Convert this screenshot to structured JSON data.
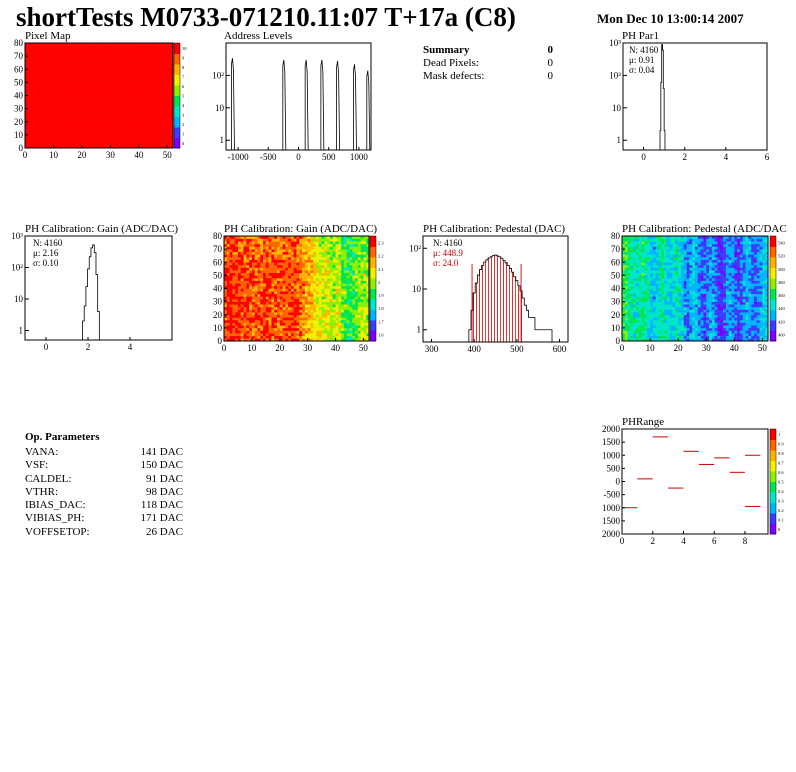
{
  "header": {
    "title": "shortTests M0733-071210.11:07 T+17a (C8)",
    "date": "Mon Dec 10 13:00:14 2007"
  },
  "summary": {
    "heading": "Summary",
    "heading_value": "0",
    "rows": [
      {
        "label": "Dead Pixels:",
        "value": "0"
      },
      {
        "label": "Mask defects:",
        "value": "0"
      }
    ]
  },
  "op_params": {
    "heading": "Op. Parameters",
    "rows": [
      {
        "name": "VANA:",
        "value": "141 DAC"
      },
      {
        "name": "VSF:",
        "value": "150 DAC"
      },
      {
        "name": "CALDEL:",
        "value": "91 DAC"
      },
      {
        "name": "VTHR:",
        "value": "98 DAC"
      },
      {
        "name": "IBIAS_DAC:",
        "value": "118 DAC"
      },
      {
        "name": "VIBIAS_PH:",
        "value": "171 DAC"
      },
      {
        "name": "VOFFSETOP:",
        "value": "26 DAC"
      }
    ]
  },
  "colors": {
    "frame": "#000000",
    "hist_line": "#000000",
    "fit_red": "#cc0000",
    "palette": [
      "#7b00ff",
      "#3c3cff",
      "#00b4ff",
      "#00e6c8",
      "#00e650",
      "#8cf000",
      "#f0f000",
      "#ffb400",
      "#ff6400",
      "#ff0000"
    ]
  },
  "chart_data": [
    {
      "id": "pixel_map",
      "type": "heatmap",
      "title": "Pixel Map",
      "x_ticks": [
        "0",
        "10",
        "20",
        "30",
        "40",
        "50"
      ],
      "y_ticks": [
        "0",
        "10",
        "20",
        "30",
        "40",
        "50",
        "60",
        "70",
        "80"
      ],
      "xlim": [
        0,
        52
      ],
      "ylim": [
        0,
        80
      ],
      "uniform_value": 10,
      "colorbar_labels": [
        "10",
        "9",
        "8",
        "7",
        "6",
        "5",
        "4",
        "3",
        "2",
        "1",
        "0"
      ]
    },
    {
      "id": "address_levels",
      "type": "bar",
      "title": "Address Levels",
      "x_ticks": [
        "-1000",
        "-500",
        "0",
        "500",
        "1000"
      ],
      "y_ticks": [
        "1",
        "10",
        "10²"
      ],
      "xlim": [
        -1200,
        1200
      ],
      "log_y": true,
      "ylim": [
        0.5,
        1000
      ],
      "peaks": [
        {
          "x": -1060,
          "y": 340
        },
        {
          "x": -210,
          "y": 300
        },
        {
          "x": 160,
          "y": 300
        },
        {
          "x": 420,
          "y": 300
        },
        {
          "x": 680,
          "y": 280
        },
        {
          "x": 960,
          "y": 220
        },
        {
          "x": 1180,
          "y": 140
        }
      ]
    },
    {
      "id": "ph_par1",
      "type": "bar",
      "title": "PH Par1",
      "x_ticks": [
        "0",
        "2",
        "4",
        "6"
      ],
      "y_ticks": [
        "1",
        "10",
        "10²",
        "10³"
      ],
      "xlim": [
        -1,
        6
      ],
      "log_y": true,
      "ylim": [
        0.5,
        1000
      ],
      "stats": [
        "N: 4160",
        "μ: 0.91",
        "σ: 0.04"
      ],
      "bins": [
        {
          "x": 0.82,
          "y": 2
        },
        {
          "x": 0.86,
          "y": 60
        },
        {
          "x": 0.9,
          "y": 900
        },
        {
          "x": 0.94,
          "y": 600
        },
        {
          "x": 0.98,
          "y": 40
        },
        {
          "x": 1.02,
          "y": 2
        }
      ]
    },
    {
      "id": "ph_gain",
      "type": "bar",
      "title": "PH Calibration: Gain (ADC/DAC)",
      "x_ticks": [
        "0",
        "2",
        "4"
      ],
      "y_ticks": [
        "1",
        "10",
        "10²",
        "10³"
      ],
      "xlim": [
        -1,
        6
      ],
      "log_y": true,
      "ylim": [
        0.5,
        1000
      ],
      "stats": [
        "N: 4160",
        "μ: 2.16",
        "σ: 0.10"
      ],
      "bins": [
        {
          "x": 1.78,
          "y": 2
        },
        {
          "x": 1.86,
          "y": 6
        },
        {
          "x": 1.94,
          "y": 25
        },
        {
          "x": 2.02,
          "y": 90
        },
        {
          "x": 2.1,
          "y": 220
        },
        {
          "x": 2.18,
          "y": 420
        },
        {
          "x": 2.26,
          "y": 520
        },
        {
          "x": 2.34,
          "y": 300
        },
        {
          "x": 2.42,
          "y": 60
        },
        {
          "x": 2.5,
          "y": 4
        }
      ]
    },
    {
      "id": "ph_gain_map",
      "type": "heatmap",
      "title": "PH Calibration: Gain (ADC/DAC)",
      "x_ticks": [
        "0",
        "10",
        "20",
        "30",
        "40",
        "50"
      ],
      "y_ticks": [
        "0",
        "10",
        "20",
        "30",
        "40",
        "50",
        "60",
        "70",
        "80"
      ],
      "xlim": [
        0,
        52
      ],
      "ylim": [
        0,
        80
      ],
      "zlim": [
        1.6,
        2.4
      ],
      "colorbar_labels": [
        "2.3",
        "2.2",
        "2.1",
        "2",
        "1.9",
        "1.8",
        "1.7",
        "1.6"
      ],
      "column_trend": [
        2.32,
        2.33,
        2.34,
        2.34,
        2.33,
        2.33,
        2.32,
        2.32,
        2.31,
        2.31,
        2.3,
        2.3,
        2.3,
        2.3,
        2.31,
        2.31,
        2.3,
        2.3,
        2.29,
        2.29,
        2.3,
        2.3,
        2.31,
        2.31,
        2.32,
        2.32,
        2.3,
        2.28,
        2.24,
        2.22,
        2.2,
        2.18,
        2.14,
        2.12,
        2.1,
        2.08,
        2.12,
        2.1,
        2.08,
        2.06,
        2.1,
        2.08,
        2.02,
        2.0,
        1.98,
        1.96,
        2.0,
        2.02,
        2.04,
        2.06,
        2.08,
        2.06
      ]
    },
    {
      "id": "ph_pedestal",
      "type": "bar",
      "title": "PH Calibration: Pedestal (DAC)",
      "x_ticks": [
        "300",
        "400",
        "500",
        "600"
      ],
      "y_ticks": [
        "1",
        "10",
        "10²"
      ],
      "xlim": [
        280,
        620
      ],
      "log_y": true,
      "ylim": [
        0.5,
        200
      ],
      "stats": [
        "N: 4160",
        "μ: 448.9",
        "σ: 24.0"
      ],
      "fit_range": [
        395,
        510
      ],
      "bins": [
        {
          "x": 390,
          "y": 1
        },
        {
          "x": 395,
          "y": 3
        },
        {
          "x": 400,
          "y": 8
        },
        {
          "x": 405,
          "y": 14
        },
        {
          "x": 410,
          "y": 22
        },
        {
          "x": 415,
          "y": 30
        },
        {
          "x": 420,
          "y": 38
        },
        {
          "x": 425,
          "y": 46
        },
        {
          "x": 430,
          "y": 52
        },
        {
          "x": 435,
          "y": 58
        },
        {
          "x": 440,
          "y": 62
        },
        {
          "x": 445,
          "y": 66
        },
        {
          "x": 450,
          "y": 68
        },
        {
          "x": 455,
          "y": 65
        },
        {
          "x": 460,
          "y": 62
        },
        {
          "x": 465,
          "y": 56
        },
        {
          "x": 470,
          "y": 50
        },
        {
          "x": 475,
          "y": 44
        },
        {
          "x": 480,
          "y": 38
        },
        {
          "x": 485,
          "y": 32
        },
        {
          "x": 490,
          "y": 26
        },
        {
          "x": 495,
          "y": 20
        },
        {
          "x": 500,
          "y": 16
        },
        {
          "x": 505,
          "y": 12
        },
        {
          "x": 510,
          "y": 9
        },
        {
          "x": 515,
          "y": 6
        },
        {
          "x": 520,
          "y": 4
        },
        {
          "x": 525,
          "y": 3
        },
        {
          "x": 530,
          "y": 2
        },
        {
          "x": 535,
          "y": 2
        },
        {
          "x": 540,
          "y": 2
        },
        {
          "x": 545,
          "y": 1
        },
        {
          "x": 550,
          "y": 1
        },
        {
          "x": 560,
          "y": 1
        },
        {
          "x": 570,
          "y": 1
        },
        {
          "x": 580,
          "y": 1
        }
      ]
    },
    {
      "id": "ph_pedestal_map",
      "type": "heatmap",
      "title": "PH Calibration: Pedestal (ADC/DAC",
      "x_ticks": [
        "0",
        "10",
        "20",
        "30",
        "40",
        "50"
      ],
      "y_ticks": [
        "0",
        "10",
        "20",
        "30",
        "40",
        "50",
        "60",
        "70",
        "80"
      ],
      "xlim": [
        0,
        52
      ],
      "ylim": [
        0,
        80
      ],
      "zlim": [
        390,
        560
      ],
      "colorbar_labels": [
        "540",
        "520",
        "500",
        "480",
        "460",
        "440",
        "420",
        "400"
      ],
      "column_trend": [
        470,
        468,
        460,
        455,
        450,
        452,
        458,
        462,
        455,
        448,
        440,
        438,
        445,
        452,
        456,
        450,
        444,
        440,
        446,
        452,
        448,
        440,
        430,
        425,
        432,
        440,
        436,
        428,
        420,
        415,
        424,
        432,
        430,
        422,
        414,
        410,
        418,
        428,
        432,
        426,
        418,
        412,
        420,
        430,
        436,
        430,
        424,
        420,
        426,
        434,
        438,
        440
      ]
    },
    {
      "id": "ph_range",
      "type": "scatter",
      "title": "PHRange",
      "x_ticks": [
        "0",
        "2",
        "4",
        "6",
        "8"
      ],
      "y_ticks": [
        "2000",
        "1500",
        "1000",
        "500",
        "0",
        "-500",
        "1000",
        "1500",
        "2000"
      ],
      "xlim": [
        0,
        9.5
      ],
      "ylim": [
        -2000,
        2000
      ],
      "colorbar_labels": [
        "1",
        "0.9",
        "0.8",
        "0.7",
        "0.6",
        "0.5",
        "0.4",
        "0.3",
        "0.2",
        "0.1",
        "0"
      ],
      "segments": [
        {
          "x": 0.5,
          "y": -1000
        },
        {
          "x": 1.5,
          "y": 100
        },
        {
          "x": 2.5,
          "y": 1700
        },
        {
          "x": 3.5,
          "y": -250
        },
        {
          "x": 4.5,
          "y": 1150
        },
        {
          "x": 5.5,
          "y": 650
        },
        {
          "x": 6.5,
          "y": 900
        },
        {
          "x": 7.5,
          "y": 350
        },
        {
          "x": 8.5,
          "y": 1000
        },
        {
          "x": 8.5,
          "y": -950
        }
      ]
    }
  ]
}
